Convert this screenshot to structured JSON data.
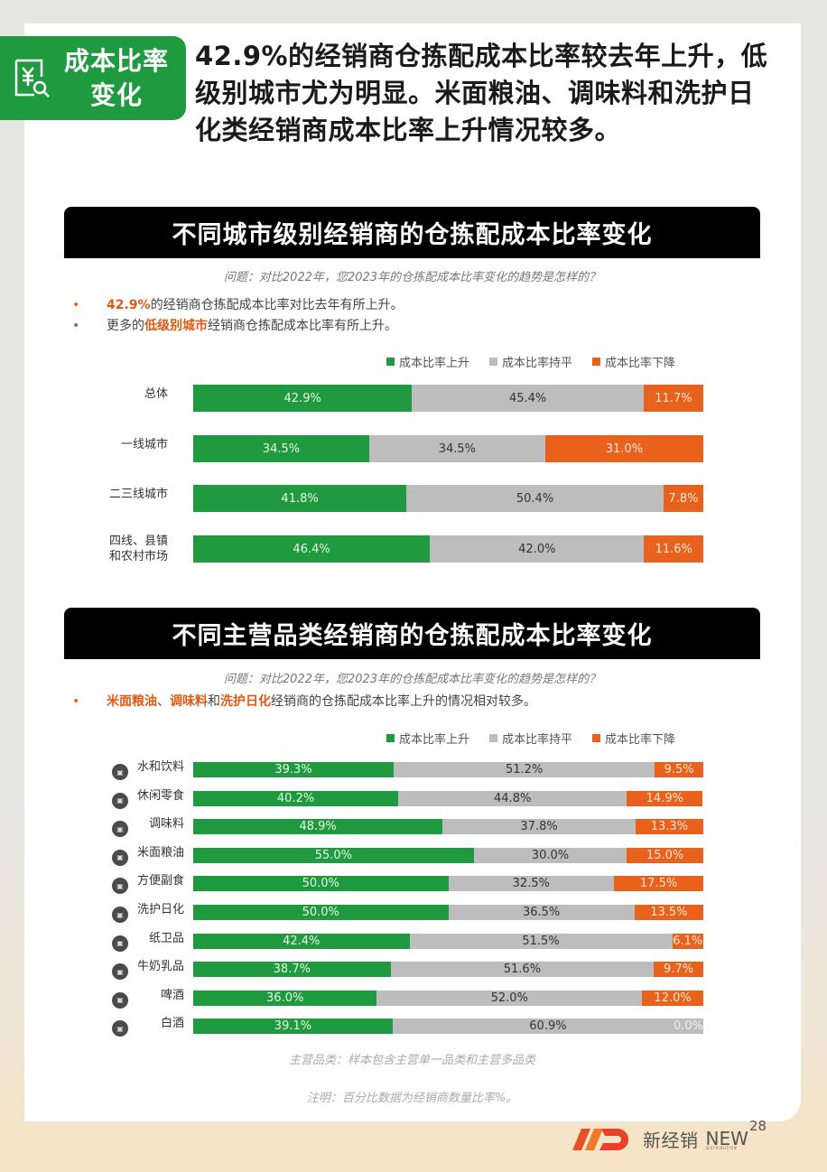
{
  "badge": {
    "line1": "成本比率",
    "line2": "变化",
    "icon": "yuan-search-icon"
  },
  "headline": {
    "line1": "42.9%的经销商仓拣配成本比率较去年上升，低",
    "line2": "级别城市尤为明显。米面粮油、调味料和洗护日",
    "line3": "化类经销商成本比率上升情况较多。"
  },
  "section1": {
    "title": "不同城市级别经销商的仓拣配成本比率变化",
    "question": "问题：对比2022年，您2023年的仓拣配成本比率变化的趋势是怎样的？",
    "bullets": [
      {
        "highlight": "42.9%",
        "text": "的经销商仓拣配成本比率对比去年有所上升。"
      },
      {
        "prefix": "更多的",
        "highlight": "低级别城市",
        "text": "经销商仓拣配成本比率有所上升。"
      }
    ]
  },
  "section2": {
    "title": "不同主营品类经销商的仓拣配成本比率变化",
    "question": "问题：对比2022年，您2023年的仓拣配成本比率变化的趋势是怎样的？",
    "bullet": {
      "h1": "米面粮油",
      "sep1": "、",
      "h2": "调味料",
      "sep2": "和",
      "h3": "洗护日化",
      "text": "经销商的仓拣配成本比率上升的情况相对较多。"
    }
  },
  "legend": {
    "up": "成本比率上升",
    "flat": "成本比率持平",
    "down": "成本比率下降"
  },
  "colors": {
    "up": "#1f9a3e",
    "flat": "#bdbdbd",
    "down": "#e8621e",
    "accent": "#e05a17"
  },
  "chart_data": [
    {
      "type": "bar",
      "stacked": true,
      "orientation": "horizontal",
      "title": "不同城市级别经销商的仓拣配成本比率变化",
      "categories": [
        "总体",
        "一线城市",
        "二三线城市",
        "四线、县镇和农村市场"
      ],
      "series": [
        {
          "name": "成本比率上升",
          "values": [
            42.9,
            34.5,
            41.8,
            46.4
          ]
        },
        {
          "name": "成本比率持平",
          "values": [
            45.4,
            34.5,
            50.4,
            42.0
          ]
        },
        {
          "name": "成本比率下降",
          "values": [
            11.7,
            31.0,
            7.8,
            11.6
          ]
        }
      ],
      "labels": [
        [
          "42.9%",
          "45.4%",
          "11.7%"
        ],
        [
          "34.5%",
          "34.5%",
          "31.0%"
        ],
        [
          "41.8%",
          "50.4%",
          "7.8%"
        ],
        [
          "46.4%",
          "42.0%",
          "11.6%"
        ]
      ],
      "legend_position": "top-right",
      "xlim": [
        0,
        100
      ]
    },
    {
      "type": "bar",
      "stacked": true,
      "orientation": "horizontal",
      "title": "不同主营品类经销商的仓拣配成本比率变化",
      "categories": [
        "水和饮料",
        "休闲零食",
        "调味料",
        "米面粮油",
        "方便副食",
        "洗护日化",
        "纸卫品",
        "牛奶乳品",
        "啤酒",
        "白酒"
      ],
      "series": [
        {
          "name": "成本比率上升",
          "values": [
            39.3,
            40.2,
            48.9,
            55.0,
            50.0,
            50.0,
            42.4,
            38.7,
            36.0,
            39.1
          ]
        },
        {
          "name": "成本比率持平",
          "values": [
            51.2,
            44.8,
            37.8,
            30.0,
            32.5,
            36.5,
            51.5,
            51.6,
            52.0,
            60.9
          ]
        },
        {
          "name": "成本比率下降",
          "values": [
            9.5,
            14.9,
            13.3,
            15.0,
            17.5,
            13.5,
            6.1,
            9.7,
            12.0,
            0.0
          ]
        }
      ],
      "labels": [
        [
          "39.3%",
          "51.2%",
          "9.5%"
        ],
        [
          "40.2%",
          "44.8%",
          "14.9%"
        ],
        [
          "48.9%",
          "37.8%",
          "13.3%"
        ],
        [
          "55.0%",
          "30.0%",
          "15.0%"
        ],
        [
          "50.0%",
          "32.5%",
          "17.5%"
        ],
        [
          "50.0%",
          "36.5%",
          "13.5%"
        ],
        [
          "42.4%",
          "51.5%",
          "6.1%"
        ],
        [
          "38.7%",
          "51.6%",
          "9.7%"
        ],
        [
          "36.0%",
          "52.0%",
          "12.0%"
        ],
        [
          "39.1%",
          "60.9%",
          "0.0%"
        ]
      ],
      "legend_position": "top-right",
      "xlim": [
        0,
        100
      ]
    }
  ],
  "city_rows": [
    {
      "label": "总体",
      "up": "42.9%",
      "flat": "45.4%",
      "down": "11.7%",
      "u": 42.9,
      "f": 45.4,
      "d": 11.7
    },
    {
      "label": "一线城市",
      "up": "34.5%",
      "flat": "34.5%",
      "down": "31.0%",
      "u": 34.5,
      "f": 34.5,
      "d": 31.0
    },
    {
      "label": "二三线城市",
      "up": "41.8%",
      "flat": "50.4%",
      "down": "7.8%",
      "u": 41.8,
      "f": 50.4,
      "d": 7.8
    },
    {
      "label": "四线、县镇",
      "label2": "和农村市场",
      "up": "46.4%",
      "flat": "42.0%",
      "down": "11.6%",
      "u": 46.4,
      "f": 42.0,
      "d": 11.6
    }
  ],
  "category_rows": [
    {
      "label": "水和饮料",
      "icon": "beverage-icon",
      "up": "39.3%",
      "flat": "51.2%",
      "down": "9.5%",
      "u": 39.3,
      "f": 51.2,
      "d": 9.5
    },
    {
      "label": "休闲零食",
      "icon": "snack-icon",
      "up": "40.2%",
      "flat": "44.8%",
      "down": "14.9%",
      "u": 40.2,
      "f": 44.8,
      "d": 14.9
    },
    {
      "label": "调味料",
      "icon": "seasoning-icon",
      "up": "48.9%",
      "flat": "37.8%",
      "down": "13.3%",
      "u": 48.9,
      "f": 37.8,
      "d": 13.3
    },
    {
      "label": "米面粮油",
      "icon": "grain-oil-icon",
      "up": "55.0%",
      "flat": "30.0%",
      "down": "15.0%",
      "u": 55.0,
      "f": 30.0,
      "d": 15.0
    },
    {
      "label": "方便副食",
      "icon": "instant-food-icon",
      "up": "50.0%",
      "flat": "32.5%",
      "down": "17.5%",
      "u": 50.0,
      "f": 32.5,
      "d": 17.5
    },
    {
      "label": "洗护日化",
      "icon": "personal-care-icon",
      "up": "50.0%",
      "flat": "36.5%",
      "down": "13.5%",
      "u": 50.0,
      "f": 36.5,
      "d": 13.5
    },
    {
      "label": "纸卫品",
      "icon": "tissue-icon",
      "up": "42.4%",
      "flat": "51.5%",
      "down": "6.1%",
      "u": 42.4,
      "f": 51.5,
      "d": 6.1
    },
    {
      "label": "牛奶乳品",
      "icon": "dairy-icon",
      "up": "38.7%",
      "flat": "51.6%",
      "down": "9.7%",
      "u": 38.7,
      "f": 51.6,
      "d": 9.7
    },
    {
      "label": "啤酒",
      "icon": "beer-icon",
      "up": "36.0%",
      "flat": "52.0%",
      "down": "12.0%",
      "u": 36.0,
      "f": 52.0,
      "d": 12.0
    },
    {
      "label": "白酒",
      "icon": "liquor-icon",
      "up": "39.1%",
      "flat": "60.9%",
      "down": "0.0%",
      "u": 39.1,
      "f": 60.9,
      "d": 0.0
    }
  ],
  "footnotes": {
    "category_note": "主营品类：样本包含主营单一品类和主营多品类",
    "note": "注明：百分比数据为经销商数量比率%。"
  },
  "footer": {
    "logo_cn": "新经销",
    "logo_en": "NEW",
    "logo_sub": "DISTRIBUTION",
    "page_number": "28"
  }
}
